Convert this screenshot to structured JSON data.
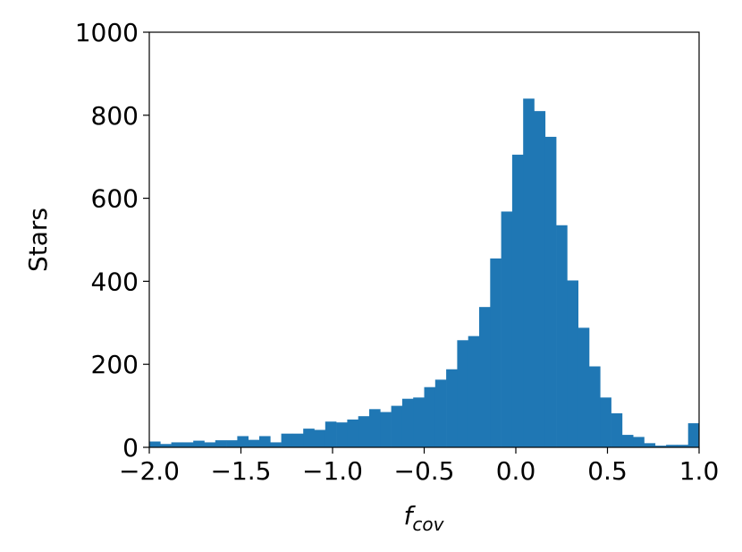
{
  "chart_data": {
    "type": "histogram",
    "xlabel": "f",
    "xlabel_sub": "cov",
    "ylabel": "Stars",
    "color": "#1f77b4",
    "bins": [
      -2.0,
      -1.94,
      -1.88,
      -1.82,
      -1.76,
      -1.7,
      -1.64,
      -1.58,
      -1.52,
      -1.46,
      -1.4,
      -1.34,
      -1.28,
      -1.22,
      -1.16,
      -1.1,
      -1.04,
      -0.98,
      -0.92,
      -0.86,
      -0.8,
      -0.74,
      -0.68,
      -0.62,
      -0.56,
      -0.5,
      -0.44,
      -0.38,
      -0.32,
      -0.26,
      -0.2,
      -0.14,
      -0.08,
      -0.02,
      0.04,
      0.1,
      0.16,
      0.22,
      0.28,
      0.34,
      0.4,
      0.46,
      0.52,
      0.58,
      0.64,
      0.7,
      0.76,
      0.82,
      0.88,
      0.94,
      1.0
    ],
    "counts": [
      14,
      8,
      12,
      12,
      16,
      12,
      17,
      17,
      27,
      18,
      27,
      12,
      33,
      33,
      45,
      42,
      62,
      60,
      67,
      75,
      92,
      85,
      100,
      117,
      120,
      145,
      163,
      188,
      258,
      268,
      338,
      455,
      568,
      705,
      840,
      810,
      748,
      535,
      402,
      288,
      195,
      120,
      82,
      30,
      25,
      10,
      4,
      6,
      6,
      58
    ],
    "xlim": [
      -2.0,
      1.0
    ],
    "xticks": [
      {
        "value": -2.0,
        "label": "−2.0"
      },
      {
        "value": -1.5,
        "label": "−1.5"
      },
      {
        "value": -1.0,
        "label": "−1.0"
      },
      {
        "value": -0.5,
        "label": "−0.5"
      },
      {
        "value": 0.0,
        "label": "0.0"
      },
      {
        "value": 0.5,
        "label": "0.5"
      },
      {
        "value": 1.0,
        "label": "1.0"
      }
    ],
    "ylim": [
      0,
      1000
    ],
    "yticks": [
      0,
      200,
      400,
      600,
      800,
      1000
    ]
  }
}
